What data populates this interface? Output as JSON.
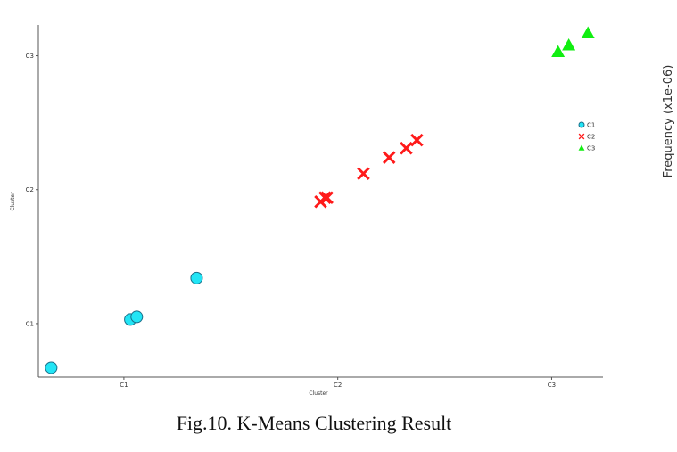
{
  "caption": "Fig.10. K-Means Clustering Result",
  "side_label": "Frequency (x1e-06)",
  "chart_data": {
    "type": "scatter",
    "xlabel": "Cluster",
    "ylabel": "Cluster",
    "x_ticks": [
      {
        "value": 1,
        "label": "C1"
      },
      {
        "value": 2,
        "label": "C2"
      },
      {
        "value": 3,
        "label": "C3"
      }
    ],
    "y_ticks": [
      {
        "value": 1,
        "label": "C1"
      },
      {
        "value": 2,
        "label": "C2"
      },
      {
        "value": 3,
        "label": "C3"
      }
    ],
    "xlim": [
      0.6,
      3.24
    ],
    "ylim": [
      0.6,
      3.23
    ],
    "grid": false,
    "legend_position": "right",
    "series": [
      {
        "name": "C1",
        "marker": "circle",
        "color": "#22e5f5",
        "points": [
          [
            0.66,
            0.67
          ],
          [
            1.03,
            1.03
          ],
          [
            1.06,
            1.05
          ],
          [
            1.34,
            1.34
          ]
        ]
      },
      {
        "name": "C2",
        "marker": "x",
        "color": "#ff1a1a",
        "points": [
          [
            1.92,
            1.91
          ],
          [
            1.94,
            1.94
          ],
          [
            1.95,
            1.94
          ],
          [
            2.12,
            2.12
          ],
          [
            2.24,
            2.24
          ],
          [
            2.32,
            2.31
          ],
          [
            2.37,
            2.37
          ]
        ]
      },
      {
        "name": "C3",
        "marker": "triangle",
        "color": "#11ee11",
        "points": [
          [
            3.03,
            3.03
          ],
          [
            3.08,
            3.08
          ],
          [
            3.17,
            3.17
          ]
        ]
      }
    ]
  }
}
